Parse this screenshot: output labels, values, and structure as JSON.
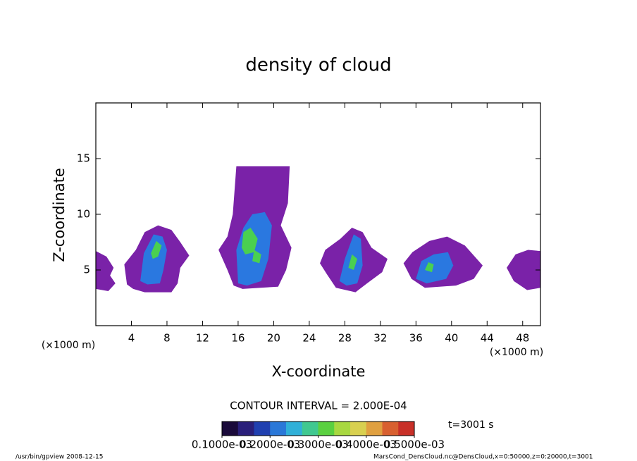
{
  "chart_data": {
    "type": "contour",
    "title": "density of cloud",
    "xlabel": "X-coordinate",
    "ylabel": "Z-coordinate",
    "xunit_left": "(×1000 m)",
    "xunit_right": "(×1000 m)",
    "xlim": [
      0,
      50
    ],
    "xticks": [
      4,
      8,
      12,
      16,
      20,
      24,
      28,
      32,
      36,
      40,
      44,
      48
    ],
    "ylim": [
      0,
      20
    ],
    "yticks": [
      5,
      10,
      15
    ],
    "contour_interval": "CONTOUR INTERVAL = 2.000E-04",
    "time_label": "t=3001 s",
    "footer_left": "/usr/bin/gpview   2008-12-15",
    "footer_right": "MarsCond_DensCloud.nc@DensCloud,x=0:50000,z=0:20000,t=3001",
    "colorbar": {
      "colors": [
        "#1a0a3a",
        "#2a1f7a",
        "#2040b0",
        "#2a78d8",
        "#30b0d8",
        "#40c890",
        "#5ad040",
        "#a8d840",
        "#d8d050",
        "#e0a040",
        "#d86030",
        "#c83028"
      ],
      "clim": [
        0.0001,
        0.0005
      ],
      "ticks": [
        {
          "value": 0.0001,
          "label": "0.1000e-03"
        },
        {
          "value": 0.0002,
          "label": "0.2000e-03"
        },
        {
          "value": 0.0003,
          "label": "0.3000e-03"
        },
        {
          "value": 0.0004,
          "label": "0.4000e-03"
        },
        {
          "value": 0.0005,
          "label": "0.5000e-03"
        }
      ],
      "levels": [
        0.0001,
        0.0002,
        0.0003
      ],
      "level_colors": [
        "#7a22a8",
        "#2a78e0",
        "#4ad050"
      ]
    },
    "regions": [
      {
        "level": 0.0001,
        "x": [
          0,
          1.2,
          2,
          1.6,
          2.2,
          1.4,
          0
        ],
        "z": [
          6.7,
          6.2,
          5.2,
          4.5,
          3.8,
          3.1,
          3.3
        ]
      },
      {
        "level": 0.0001,
        "x": [
          3.5,
          3.2,
          4.5,
          5.5,
          7,
          8.5,
          9.5,
          10.5,
          9.5,
          9.2,
          8.5,
          5.5,
          4.2
        ],
        "z": [
          3.7,
          5.5,
          6.8,
          8.4,
          9,
          8.6,
          7.5,
          6.3,
          5.2,
          3.8,
          3,
          3,
          3.3
        ]
      },
      {
        "level": 0.0002,
        "x": [
          5,
          5.4,
          6.5,
          7.5,
          8,
          7.6,
          7.2,
          5.8
        ],
        "z": [
          4,
          6.5,
          8.2,
          8,
          6.8,
          5,
          3.8,
          3.7
        ]
      },
      {
        "level": 0.0003,
        "x": [
          6.2,
          6.8,
          7.4,
          7,
          6.4
        ],
        "z": [
          6.5,
          7.6,
          7.2,
          6.2,
          6
        ]
      },
      {
        "level": 0.0001,
        "x": [
          15.5,
          14.8,
          13.8,
          14.8,
          15.4,
          15.8,
          21.8,
          21.6,
          20.8,
          22,
          21.4,
          20.5,
          16.5
        ],
        "z": [
          3.6,
          5,
          6.8,
          8,
          10,
          14.3,
          14.3,
          11,
          9,
          7,
          5,
          3.5,
          3.3
        ]
      },
      {
        "level": 0.0002,
        "x": [
          16,
          15.8,
          16.6,
          17.6,
          19,
          19.8,
          19.4,
          18.6,
          17
        ],
        "z": [
          3.8,
          6.8,
          8.8,
          10,
          10.2,
          9,
          6,
          4,
          3.6
        ]
      },
      {
        "level": 0.0003,
        "x": [
          16.4,
          16.6,
          17.4,
          18.2,
          17.8,
          16.8
        ],
        "z": [
          7,
          8.4,
          8.8,
          7.8,
          6.6,
          6.4
        ]
      },
      {
        "level": 0.0003,
        "x": [
          17.6,
          17.8,
          18.6,
          18.4
        ],
        "z": [
          5.8,
          6.8,
          6.4,
          5.6
        ]
      },
      {
        "level": 0.0001,
        "x": [
          25.2,
          25.8,
          27.5,
          28.8,
          30,
          31,
          32.8,
          32.2,
          30.5,
          29.2,
          27,
          26
        ],
        "z": [
          5.6,
          6.8,
          7.8,
          8.8,
          8.4,
          7,
          6,
          4.8,
          3.8,
          3,
          3.4,
          4.6
        ]
      },
      {
        "level": 0.0002,
        "x": [
          27.4,
          28,
          29,
          29.8,
          30,
          29.4,
          28.2
        ],
        "z": [
          4,
          6,
          8.2,
          7.8,
          5.4,
          3.8,
          3.6
        ]
      },
      {
        "level": 0.0003,
        "x": [
          28.4,
          28.8,
          29.4,
          29
        ],
        "z": [
          5.2,
          6.4,
          6,
          5
        ]
      },
      {
        "level": 0.0001,
        "x": [
          34.6,
          35.6,
          37.5,
          39.5,
          41.5,
          43.5,
          42.5,
          40.5,
          37,
          35.5
        ],
        "z": [
          5.6,
          6.6,
          7.6,
          8,
          7.2,
          5.4,
          4.2,
          3.6,
          3.4,
          4.2
        ]
      },
      {
        "level": 0.0002,
        "x": [
          36,
          36.6,
          38,
          39.6,
          40.2,
          39.4,
          37.2
        ],
        "z": [
          4.2,
          5.8,
          6.4,
          6.6,
          5.4,
          4.2,
          3.8
        ]
      },
      {
        "level": 0.0003,
        "x": [
          37,
          37.4,
          38,
          37.8
        ],
        "z": [
          5,
          5.7,
          5.5,
          4.8
        ]
      },
      {
        "level": 0.0001,
        "x": [
          46.2,
          47.2,
          48.6,
          50,
          50,
          48.5,
          47
        ],
        "z": [
          5.2,
          6.4,
          6.8,
          6.7,
          3.4,
          3.2,
          4
        ]
      }
    ]
  }
}
